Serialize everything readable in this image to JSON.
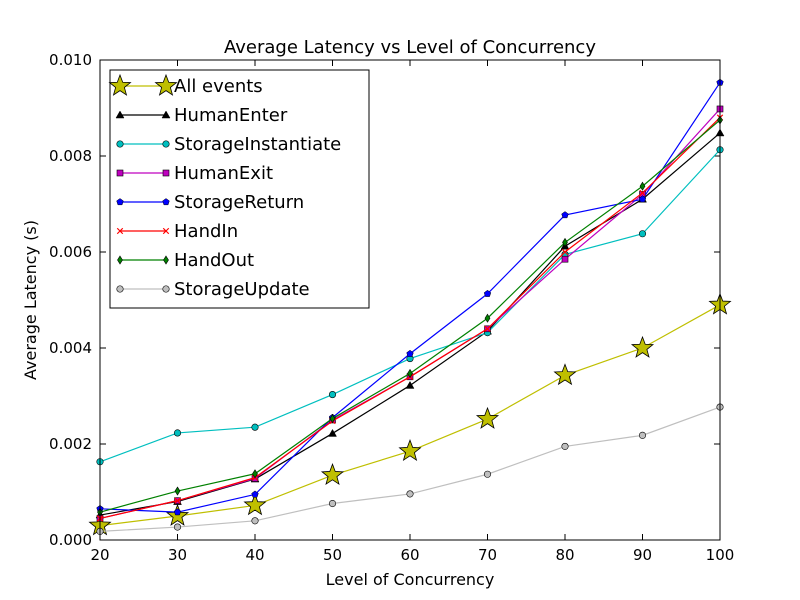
{
  "chart_data": {
    "type": "line",
    "title": "Average Latency vs Level of Concurrency",
    "xlabel": "Level of Concurrency",
    "ylabel": "Average Latency (s)",
    "xlim": [
      20,
      100
    ],
    "ylim": [
      0,
      0.01
    ],
    "x_ticks": [
      20,
      30,
      40,
      50,
      60,
      70,
      80,
      90,
      100
    ],
    "y_ticks": [
      0,
      0.002,
      0.004,
      0.006,
      0.008,
      0.01
    ],
    "y_tick_labels": [
      "0.000",
      "0.002",
      "0.004",
      "0.006",
      "0.008",
      "0.010"
    ],
    "grid": false,
    "legend_position": "top-left",
    "x": [
      20,
      30,
      40,
      50,
      60,
      70,
      80,
      90,
      100
    ],
    "series": [
      {
        "name": "All events",
        "color": "#bfbf00",
        "marker": "star",
        "values": [
          0.0003,
          0.0005,
          0.00072,
          0.00135,
          0.00185,
          0.00252,
          0.00343,
          0.004,
          0.0049
        ]
      },
      {
        "name": "HumanEnter",
        "color": "#000000",
        "marker": "triangle",
        "values": [
          0.00052,
          0.0008,
          0.00127,
          0.00222,
          0.00322,
          0.00435,
          0.00612,
          0.0071,
          0.00848
        ]
      },
      {
        "name": "StorageInstantiate",
        "color": "#00bfbf",
        "marker": "circle",
        "values": [
          0.00163,
          0.00223,
          0.00235,
          0.00303,
          0.00378,
          0.00432,
          0.00595,
          0.00638,
          0.00813
        ]
      },
      {
        "name": "HumanExit",
        "color": "#bf00bf",
        "marker": "square",
        "values": [
          0.00045,
          0.00082,
          0.00128,
          0.0025,
          0.0034,
          0.0044,
          0.00585,
          0.0072,
          0.00898
        ]
      },
      {
        "name": "StorageReturn",
        "color": "#0000ff",
        "marker": "pentagon",
        "values": [
          0.00065,
          0.00058,
          0.00095,
          0.00255,
          0.00388,
          0.00513,
          0.00677,
          0.0071,
          0.00953
        ]
      },
      {
        "name": "HandIn",
        "color": "#ff0000",
        "marker": "x",
        "values": [
          0.00045,
          0.00082,
          0.0013,
          0.00248,
          0.0034,
          0.0044,
          0.006,
          0.00723,
          0.0088
        ]
      },
      {
        "name": "HandOut",
        "color": "#008000",
        "marker": "diamond",
        "values": [
          0.00058,
          0.00102,
          0.00138,
          0.00253,
          0.00347,
          0.00462,
          0.0062,
          0.00737,
          0.00875
        ]
      },
      {
        "name": "StorageUpdate",
        "color": "#bfbfbf",
        "marker": "circle",
        "values": [
          0.00018,
          0.00027,
          0.0004,
          0.00076,
          0.00096,
          0.00137,
          0.00195,
          0.00218,
          0.00277
        ]
      }
    ]
  }
}
